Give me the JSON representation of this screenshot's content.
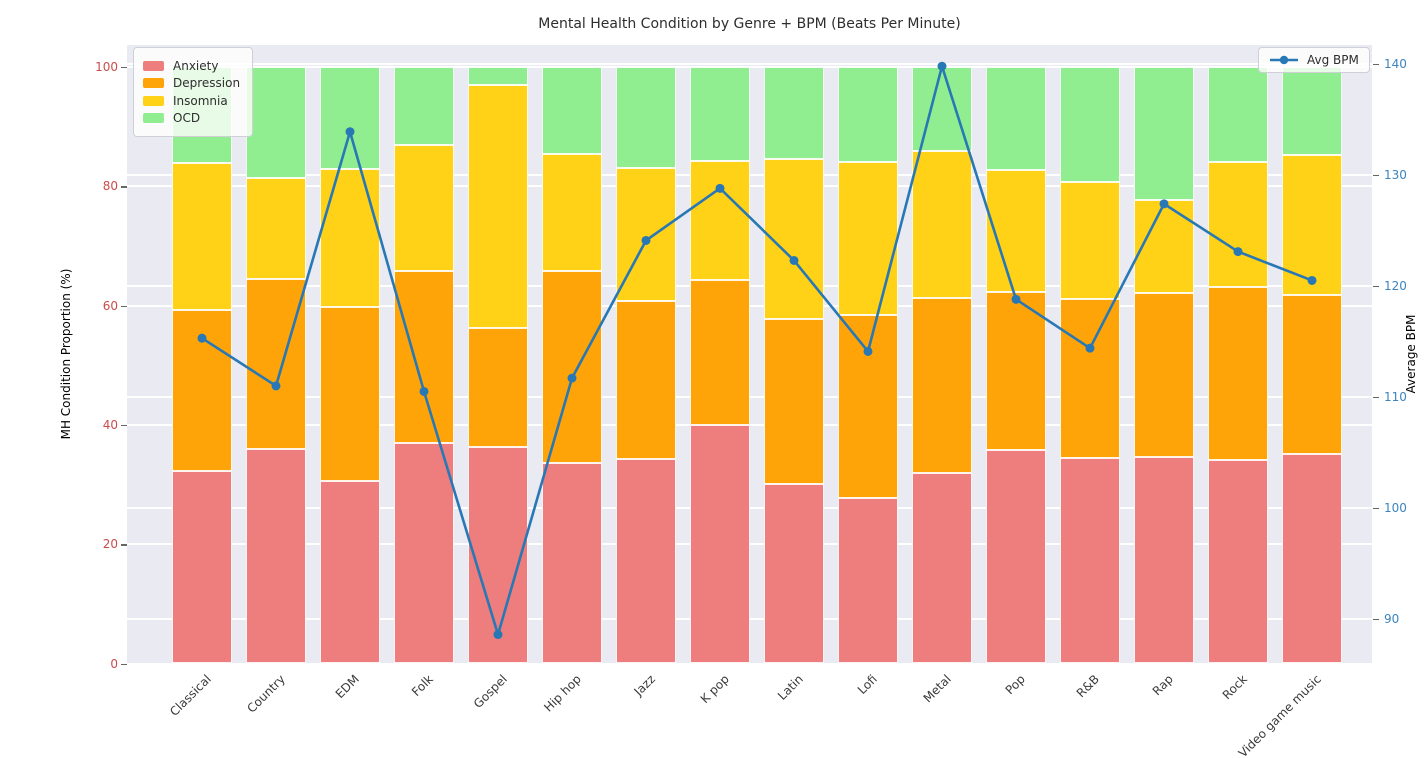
{
  "title": "Mental Health Condition by Genre + BPM (Beats Per Minute)",
  "left_axis": {
    "label": "MH Condition Proportion (%)",
    "ticks": [
      0,
      20,
      40,
      60,
      80,
      100
    ],
    "color": "#cb4c4c"
  },
  "right_axis": {
    "label": "Average BPM",
    "ticks": [
      90,
      100,
      110,
      120,
      130,
      140
    ],
    "color": "#3b84bf"
  },
  "legend": {
    "line_label": "Avg BPM"
  },
  "colors": {
    "background": "#eaeaf2",
    "grid": "#ffffff",
    "line": "#2878b5",
    "title_text": "#2e2e2e"
  },
  "chart_data": {
    "type": "bar",
    "subtype": "stacked-percentage-bars-with-line-overlay",
    "title": "Mental Health Condition by Genre + BPM (Beats Per Minute)",
    "xlabel": "",
    "ylabel_left": "MH Condition Proportion (%)",
    "ylabel_right": "Average BPM",
    "ylim_left": [
      0,
      100
    ],
    "right_axis_ticks": [
      90,
      100,
      110,
      120,
      130,
      140
    ],
    "grid": true,
    "legend_positions": {
      "conditions": "upper left",
      "line": "upper right"
    },
    "categories": [
      "Classical",
      "Country",
      "EDM",
      "Folk",
      "Gospel",
      "Hip hop",
      "Jazz",
      "K pop",
      "Latin",
      "Lofi",
      "Metal",
      "Pop",
      "R&B",
      "Rap",
      "Rock",
      "Video game music"
    ],
    "series": [
      {
        "name": "Anxiety",
        "color": "#ee7d7d",
        "values": [
          32.3,
          36.0,
          30.6,
          37.0,
          36.3,
          33.6,
          34.2,
          40.0,
          30.1,
          27.7,
          31.9,
          35.8,
          34.5,
          34.6,
          34.1,
          35.1
        ]
      },
      {
        "name": "Depression",
        "color": "#ffa408",
        "values": [
          27.0,
          28.5,
          29.2,
          28.8,
          19.9,
          32.2,
          26.6,
          24.3,
          27.7,
          30.7,
          29.4,
          26.4,
          26.6,
          27.5,
          29.0,
          26.7
        ]
      },
      {
        "name": "Insomnia",
        "color": "#ffd117",
        "values": [
          24.6,
          16.9,
          23.1,
          21.1,
          40.8,
          19.6,
          22.3,
          19.9,
          26.8,
          25.7,
          24.6,
          20.5,
          19.6,
          15.6,
          21.0,
          23.4
        ]
      },
      {
        "name": "OCD",
        "color": "#90ee90",
        "values": [
          16.1,
          18.6,
          17.1,
          13.1,
          3.0,
          14.6,
          16.9,
          15.8,
          15.4,
          15.9,
          14.1,
          17.3,
          19.3,
          22.3,
          15.9,
          14.8
        ]
      }
    ],
    "line": {
      "name": "Avg BPM",
      "color": "#2878b5",
      "values": [
        115.3,
        111.0,
        133.9,
        110.5,
        88.6,
        111.7,
        124.1,
        128.8,
        122.3,
        114.1,
        139.8,
        118.8,
        114.4,
        127.4,
        123.1,
        120.5
      ]
    }
  }
}
